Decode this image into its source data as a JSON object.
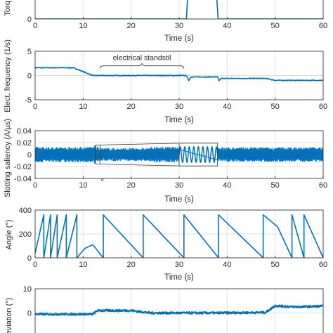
{
  "chart_data": [
    {
      "type": "line",
      "ylabel": "Torq",
      "xlabel": "Time (s)",
      "xlim": [
        0,
        60
      ],
      "ylim": [
        0,
        10
      ],
      "xticks": [
        "0",
        "10",
        "20",
        "30",
        "40",
        "50",
        "60"
      ],
      "yticks": [
        "0"
      ],
      "grid": true,
      "color": "#0072BD",
      "series": [
        {
          "x": [
            0,
            31.5,
            31.8,
            37.8,
            38.1,
            60
          ],
          "y": [
            0,
            0,
            10,
            10,
            0,
            0
          ]
        }
      ]
    },
    {
      "type": "line",
      "ylabel": "Elect. frequency (1/s)",
      "xlabel": "Time (s)",
      "xlim": [
        0,
        60
      ],
      "ylim": [
        -5,
        5
      ],
      "xticks": [
        "0",
        "10",
        "20",
        "30",
        "40",
        "50",
        "60"
      ],
      "yticks": [
        "-5",
        "0",
        "5"
      ],
      "grid": true,
      "color": "#0072BD",
      "annotation": "electrical standstil",
      "series": [
        {
          "x": [
            0,
            8,
            12,
            31.5,
            32,
            32.5,
            38,
            38.3,
            38.7,
            48,
            50,
            60
          ],
          "y": [
            1.6,
            1.6,
            0,
            0,
            -1.0,
            -0.3,
            -0.3,
            -1.1,
            -0.6,
            -0.6,
            -1.0,
            -1.0
          ]
        }
      ]
    },
    {
      "type": "line",
      "ylabel": "Slotting saliency (A/µs)",
      "xlabel": "Time (s)",
      "xlim": [
        0,
        60
      ],
      "ylim": [
        -0.04,
        0.04
      ],
      "xticks": [
        "0",
        "10",
        "20",
        "30",
        "40",
        "50",
        "60"
      ],
      "yticks": [
        "-0.04",
        "-0.02",
        "0",
        "0.02",
        "0.04"
      ],
      "grid": true,
      "color": "#0072BD",
      "series": [
        {
          "description_free": true,
          "x_range": [
            0,
            60
          ],
          "band_amplitude": 0.013
        }
      ]
    },
    {
      "type": "line",
      "ylabel": "Angle (°)",
      "xlabel": "Time (s)",
      "xlim": [
        0,
        60
      ],
      "ylim": [
        0,
        400
      ],
      "xticks": [
        "0",
        "10",
        "20",
        "30",
        "40",
        "50",
        "60"
      ],
      "yticks": [
        "0",
        "200",
        "400"
      ],
      "grid": true,
      "color": "#0072BD",
      "series": [
        {
          "x": [
            0,
            1.8,
            1.8,
            3.2,
            3.2,
            4.6,
            4.6,
            6.5,
            6.5,
            8.7,
            8.7,
            10.4,
            12,
            14.2,
            14.2,
            22.5,
            22.5,
            31,
            31,
            38.2,
            38.2,
            47.5,
            47.5,
            50.5,
            53.5,
            53.5,
            56,
            56,
            60
          ],
          "y": [
            40,
            360,
            0,
            360,
            0,
            360,
            0,
            360,
            0,
            360,
            0,
            80,
            110,
            0,
            360,
            0,
            360,
            0,
            360,
            0,
            360,
            0,
            360,
            260,
            0,
            360,
            0,
            360,
            0
          ]
        }
      ]
    },
    {
      "type": "line",
      "ylabel": "eviation (°)",
      "xlabel": "",
      "xlim": [
        0,
        60
      ],
      "ylim": [
        -10,
        10
      ],
      "yticks": [
        "0",
        "10"
      ],
      "grid": true,
      "color": "#0072BD",
      "series": [
        {
          "x": [
            0,
            12,
            13,
            20,
            24,
            38,
            48,
            50,
            54,
            60
          ],
          "y": [
            -0.5,
            -0.5,
            1.0,
            1.0,
            0,
            0,
            0.2,
            3.0,
            2.5,
            2.8
          ]
        }
      ]
    }
  ]
}
